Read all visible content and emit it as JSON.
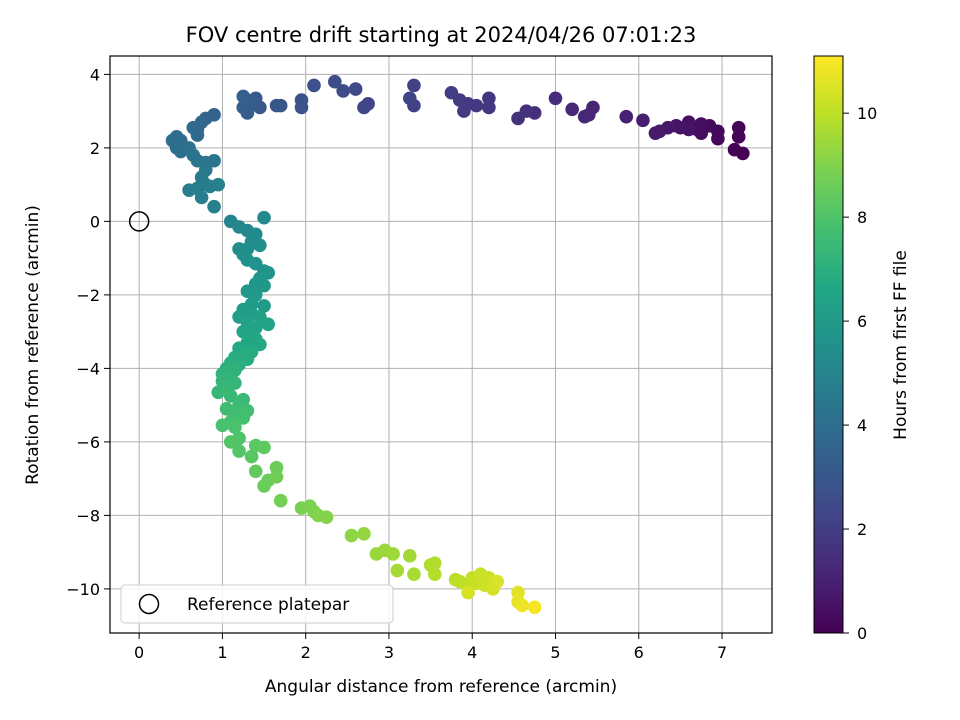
{
  "chart_data": {
    "type": "scatter",
    "title": "FOV centre drift starting at 2024/04/26 07:01:23",
    "xlabel": "Angular distance from reference (arcmin)",
    "ylabel": "Rotation from reference (arcmin)",
    "xlim": [
      -0.35,
      7.6
    ],
    "ylim": [
      -11.2,
      4.5
    ],
    "xticks": [
      "0",
      "1",
      "2",
      "3",
      "4",
      "5",
      "6",
      "7"
    ],
    "yticks": [
      "4",
      "2",
      "0",
      "−2",
      "−4",
      "−6",
      "−8",
      "−10"
    ],
    "grid": true,
    "colorbar": {
      "label": "Hours from first FF file",
      "colormap": "viridis",
      "range": [
        0,
        11.1
      ],
      "ticks": [
        "0",
        "2",
        "4",
        "6",
        "8",
        "10"
      ]
    },
    "legend": {
      "placement": "lower-left",
      "entries": [
        "Reference platepar"
      ]
    },
    "reference_point": {
      "x": 0,
      "y": 0
    },
    "points": [
      [
        7.25,
        1.85,
        0.0
      ],
      [
        7.15,
        1.95,
        0.05
      ],
      [
        7.2,
        2.3,
        0.1
      ],
      [
        7.2,
        2.55,
        0.15
      ],
      [
        6.95,
        2.25,
        0.2
      ],
      [
        6.95,
        2.45,
        0.25
      ],
      [
        6.85,
        2.6,
        0.3
      ],
      [
        6.75,
        2.4,
        0.35
      ],
      [
        6.75,
        2.65,
        0.4
      ],
      [
        6.7,
        2.5,
        0.45
      ],
      [
        6.6,
        2.7,
        0.5
      ],
      [
        6.6,
        2.5,
        0.55
      ],
      [
        6.5,
        2.55,
        0.6
      ],
      [
        6.45,
        2.6,
        0.65
      ],
      [
        6.35,
        2.55,
        0.7
      ],
      [
        6.25,
        2.45,
        0.75
      ],
      [
        6.2,
        2.4,
        0.8
      ],
      [
        6.05,
        2.75,
        0.9
      ],
      [
        5.85,
        2.85,
        1.0
      ],
      [
        5.45,
        3.1,
        1.1
      ],
      [
        5.4,
        2.9,
        1.15
      ],
      [
        5.35,
        2.85,
        1.2
      ],
      [
        5.2,
        3.05,
        1.3
      ],
      [
        5.0,
        3.35,
        1.4
      ],
      [
        4.75,
        2.95,
        1.5
      ],
      [
        4.65,
        3.0,
        1.55
      ],
      [
        4.55,
        2.8,
        1.6
      ],
      [
        4.2,
        3.35,
        1.7
      ],
      [
        4.2,
        3.1,
        1.75
      ],
      [
        4.05,
        3.15,
        1.8
      ],
      [
        3.95,
        3.2,
        1.85
      ],
      [
        3.9,
        3.0,
        1.9
      ],
      [
        3.85,
        3.3,
        1.95
      ],
      [
        3.75,
        3.5,
        2.0
      ],
      [
        3.3,
        3.7,
        2.1
      ],
      [
        3.3,
        3.15,
        2.15
      ],
      [
        3.25,
        3.35,
        2.2
      ],
      [
        2.75,
        3.2,
        2.3
      ],
      [
        2.7,
        3.1,
        2.35
      ],
      [
        2.6,
        3.6,
        2.45
      ],
      [
        2.45,
        3.55,
        2.55
      ],
      [
        2.35,
        3.8,
        2.6
      ],
      [
        2.1,
        3.7,
        2.7
      ],
      [
        1.95,
        3.1,
        2.8
      ],
      [
        1.95,
        3.3,
        2.85
      ],
      [
        1.7,
        3.15,
        2.95
      ],
      [
        1.65,
        3.15,
        3.0
      ],
      [
        1.45,
        3.1,
        3.05
      ],
      [
        1.4,
        3.35,
        3.1
      ],
      [
        1.35,
        3.2,
        3.15
      ],
      [
        1.3,
        2.95,
        3.2
      ],
      [
        1.3,
        3.3,
        3.25
      ],
      [
        1.25,
        3.1,
        3.3
      ],
      [
        1.25,
        3.4,
        3.35
      ],
      [
        0.9,
        2.9,
        3.5
      ],
      [
        0.8,
        2.8,
        3.6
      ],
      [
        0.75,
        2.7,
        3.65
      ],
      [
        0.7,
        2.5,
        3.7
      ],
      [
        0.7,
        2.35,
        3.75
      ],
      [
        0.65,
        2.55,
        3.8
      ],
      [
        0.5,
        2.2,
        3.9
      ],
      [
        0.45,
        2.3,
        3.95
      ],
      [
        0.4,
        2.2,
        4.0
      ],
      [
        0.45,
        2.0,
        4.05
      ],
      [
        0.5,
        1.9,
        4.1
      ],
      [
        0.6,
        2.0,
        4.15
      ],
      [
        0.65,
        1.8,
        4.2
      ],
      [
        0.7,
        1.65,
        4.25
      ],
      [
        0.8,
        1.6,
        4.3
      ],
      [
        0.9,
        1.65,
        4.35
      ],
      [
        0.8,
        1.4,
        4.45
      ],
      [
        0.75,
        1.2,
        4.5
      ],
      [
        0.8,
        1.0,
        4.55
      ],
      [
        0.7,
        0.9,
        4.6
      ],
      [
        0.6,
        0.85,
        4.65
      ],
      [
        0.75,
        0.65,
        4.7
      ],
      [
        0.85,
        0.95,
        4.75
      ],
      [
        0.95,
        1.0,
        4.8
      ],
      [
        0.9,
        0.4,
        4.85
      ],
      [
        1.1,
        0.0,
        5.0
      ],
      [
        1.2,
        -0.15,
        5.1
      ],
      [
        1.3,
        -0.25,
        5.15
      ],
      [
        1.5,
        0.1,
        5.2
      ],
      [
        1.4,
        -0.35,
        5.25
      ],
      [
        1.35,
        -0.55,
        5.3
      ],
      [
        1.2,
        -0.75,
        5.35
      ],
      [
        1.3,
        -0.75,
        5.4
      ],
      [
        1.25,
        -0.9,
        5.45
      ],
      [
        1.45,
        -0.65,
        5.5
      ],
      [
        1.3,
        -1.05,
        5.55
      ],
      [
        1.4,
        -1.15,
        5.6
      ],
      [
        1.5,
        -1.35,
        5.65
      ],
      [
        1.55,
        -1.4,
        5.7
      ],
      [
        1.45,
        -1.55,
        5.75
      ],
      [
        1.4,
        -1.7,
        5.8
      ],
      [
        1.5,
        -1.75,
        5.85
      ],
      [
        1.3,
        -1.9,
        5.9
      ],
      [
        1.4,
        -2.0,
        5.95
      ],
      [
        1.35,
        -2.25,
        6.0
      ],
      [
        1.5,
        -2.3,
        6.05
      ],
      [
        1.25,
        -2.4,
        6.1
      ],
      [
        1.35,
        -2.5,
        6.15
      ],
      [
        1.2,
        -2.6,
        6.2
      ],
      [
        1.45,
        -2.6,
        6.25
      ],
      [
        1.3,
        -2.75,
        6.3
      ],
      [
        1.55,
        -2.8,
        6.35
      ],
      [
        1.4,
        -2.9,
        6.4
      ],
      [
        1.25,
        -3.0,
        6.45
      ],
      [
        1.35,
        -3.1,
        6.5
      ],
      [
        1.4,
        -3.2,
        6.55
      ],
      [
        1.3,
        -3.3,
        6.6
      ],
      [
        1.45,
        -3.35,
        6.65
      ],
      [
        1.2,
        -3.45,
        6.7
      ],
      [
        1.35,
        -3.55,
        6.75
      ],
      [
        1.25,
        -3.6,
        6.8
      ],
      [
        1.15,
        -3.7,
        6.85
      ],
      [
        1.3,
        -3.75,
        6.9
      ],
      [
        1.1,
        -3.85,
        6.95
      ],
      [
        1.2,
        -3.9,
        7.0
      ],
      [
        1.05,
        -4.0,
        7.05
      ],
      [
        1.15,
        -4.05,
        7.1
      ],
      [
        1.0,
        -4.15,
        7.15
      ],
      [
        1.1,
        -4.25,
        7.2
      ],
      [
        1.0,
        -4.35,
        7.25
      ],
      [
        1.15,
        -4.4,
        7.3
      ],
      [
        1.05,
        -4.5,
        7.35
      ],
      [
        0.95,
        -4.65,
        7.4
      ],
      [
        1.1,
        -4.75,
        7.45
      ],
      [
        1.25,
        -4.85,
        7.5
      ],
      [
        1.2,
        -5.0,
        7.55
      ],
      [
        1.05,
        -5.1,
        7.6
      ],
      [
        1.15,
        -5.2,
        7.65
      ],
      [
        1.3,
        -5.15,
        7.7
      ],
      [
        1.25,
        -5.35,
        7.75
      ],
      [
        1.1,
        -5.45,
        7.8
      ],
      [
        1.0,
        -5.55,
        7.85
      ],
      [
        1.15,
        -5.6,
        7.9
      ],
      [
        1.2,
        -5.9,
        8.0
      ],
      [
        1.1,
        -6.0,
        8.05
      ],
      [
        1.2,
        -6.25,
        8.1
      ],
      [
        1.35,
        -6.4,
        8.2
      ],
      [
        1.4,
        -6.1,
        8.25
      ],
      [
        1.5,
        -6.15,
        8.3
      ],
      [
        1.4,
        -6.8,
        8.4
      ],
      [
        1.55,
        -7.05,
        8.5
      ],
      [
        1.5,
        -7.2,
        8.55
      ],
      [
        1.65,
        -6.7,
        8.6
      ],
      [
        1.65,
        -6.95,
        8.65
      ],
      [
        1.7,
        -7.6,
        8.75
      ],
      [
        1.95,
        -7.8,
        8.85
      ],
      [
        2.05,
        -7.75,
        8.9
      ],
      [
        2.1,
        -7.9,
        8.95
      ],
      [
        2.15,
        -8.0,
        9.0
      ],
      [
        2.25,
        -8.05,
        9.05
      ],
      [
        2.55,
        -8.55,
        9.2
      ],
      [
        2.7,
        -8.5,
        9.3
      ],
      [
        2.85,
        -9.05,
        9.4
      ],
      [
        2.95,
        -8.95,
        9.45
      ],
      [
        3.05,
        -9.05,
        9.5
      ],
      [
        3.25,
        -9.1,
        9.55
      ],
      [
        3.1,
        -9.5,
        9.6
      ],
      [
        3.3,
        -9.6,
        9.65
      ],
      [
        3.5,
        -9.35,
        9.75
      ],
      [
        3.55,
        -9.3,
        9.8
      ],
      [
        3.55,
        -9.6,
        9.85
      ],
      [
        3.8,
        -9.75,
        9.95
      ],
      [
        3.85,
        -9.8,
        10.0
      ],
      [
        3.95,
        -9.95,
        10.05
      ],
      [
        4.0,
        -9.7,
        10.1
      ],
      [
        4.05,
        -9.85,
        10.15
      ],
      [
        4.1,
        -9.6,
        10.2
      ],
      [
        4.2,
        -9.7,
        10.25
      ],
      [
        4.15,
        -9.9,
        10.3
      ],
      [
        4.25,
        -10.0,
        10.35
      ],
      [
        3.95,
        -10.1,
        10.4
      ],
      [
        4.3,
        -9.8,
        10.45
      ],
      [
        4.55,
        -10.1,
        10.6
      ],
      [
        4.55,
        -10.35,
        10.7
      ],
      [
        4.6,
        -10.45,
        10.8
      ],
      [
        4.75,
        -10.5,
        11.0
      ]
    ]
  }
}
